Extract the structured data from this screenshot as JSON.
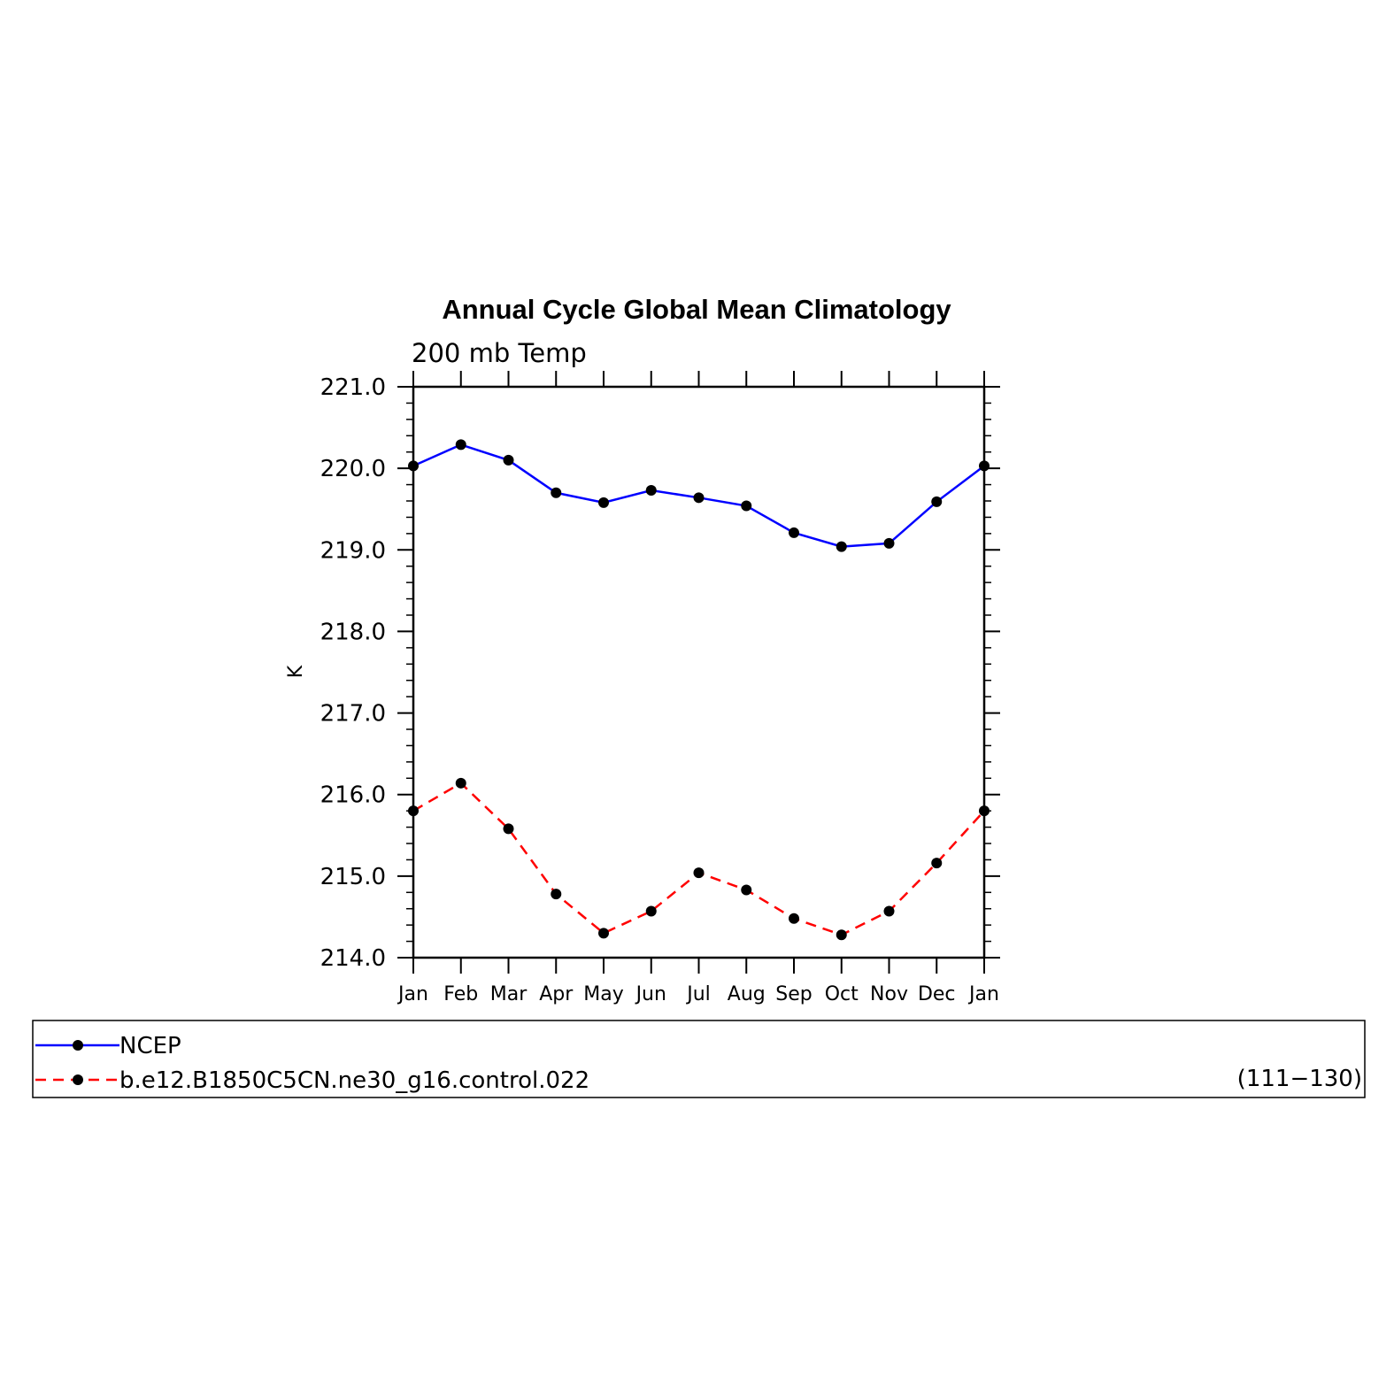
{
  "chart_data": {
    "type": "line",
    "title": "Annual Cycle Global Mean Climatology",
    "subtitle": "200 mb Temp",
    "xlabel": "",
    "ylabel": "K",
    "categories": [
      "Jan",
      "Feb",
      "Mar",
      "Apr",
      "May",
      "Jun",
      "Jul",
      "Aug",
      "Sep",
      "Oct",
      "Nov",
      "Dec",
      "Jan"
    ],
    "ylim": [
      214.0,
      221.0
    ],
    "yticks": [
      "214.0",
      "215.0",
      "216.0",
      "217.0",
      "218.0",
      "219.0",
      "220.0",
      "221.0"
    ],
    "grid": false,
    "legend_position": "bottom",
    "series": [
      {
        "name": "NCEP",
        "color": "#0000ff",
        "line_style": "solid",
        "marker": "filled-circle",
        "values": [
          220.03,
          220.29,
          220.1,
          219.7,
          219.58,
          219.73,
          219.64,
          219.54,
          219.21,
          219.04,
          219.08,
          219.59,
          220.03
        ]
      },
      {
        "name": "b.e12.B1850C5CN.ne30_g16.control.022",
        "color": "#ff0000",
        "line_style": "dashed",
        "marker": "filled-circle",
        "values": [
          215.8,
          216.14,
          215.58,
          214.78,
          214.3,
          214.57,
          215.04,
          214.83,
          214.48,
          214.28,
          214.57,
          215.16,
          215.8
        ]
      }
    ],
    "legend_note": "(111−130)"
  }
}
